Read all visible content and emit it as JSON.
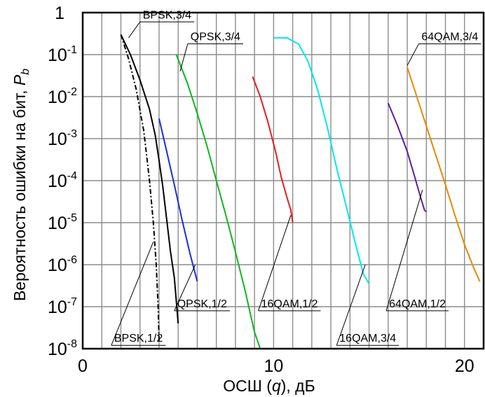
{
  "chart_data": {
    "type": "line",
    "title": "",
    "xlabel": {
      "prefix": "ОСШ (",
      "var": "q",
      "suffix": "), дБ"
    },
    "ylabel": {
      "text": "Вероятность ошибки на бит, ",
      "var": "P",
      "sub": "b"
    },
    "xlim": [
      0,
      21
    ],
    "ylim": [
      1e-08,
      1
    ],
    "yscale": "log",
    "grid": true,
    "x_ticks": [
      {
        "value": 0,
        "label": "0"
      },
      {
        "value": 10,
        "label": "10"
      },
      {
        "value": 20,
        "label": "20"
      }
    ],
    "y_ticks": [
      {
        "exp": 0,
        "label": "1"
      },
      {
        "exp": -1,
        "label": "10",
        "sup": "-1"
      },
      {
        "exp": -2,
        "label": "10",
        "sup": "-2"
      },
      {
        "exp": -3,
        "label": "10",
        "sup": "-3"
      },
      {
        "exp": -4,
        "label": "10",
        "sup": "-4"
      },
      {
        "exp": -5,
        "label": "10",
        "sup": "-5"
      },
      {
        "exp": -6,
        "label": "10",
        "sup": "-6"
      },
      {
        "exp": -7,
        "label": "10",
        "sup": "-7"
      },
      {
        "exp": -8,
        "label": "10",
        "sup": "-8"
      }
    ],
    "series": [
      {
        "name": "BPSK,1/2",
        "color": "#000000",
        "dash": "dashdot",
        "x": [
          2.0,
          2.4,
          2.8,
          3.2,
          3.5,
          3.7,
          3.85,
          3.95,
          4.0
        ],
        "y": [
          0.3,
          0.08,
          0.015,
          0.0015,
          0.0001,
          1e-05,
          1e-06,
          1e-07,
          1.5e-08
        ],
        "label_at": [
          3.6,
          1e-05
        ]
      },
      {
        "name": "BPSK,3/4",
        "color": "#000000",
        "dash": "solid",
        "x": [
          2.0,
          2.5,
          3.0,
          3.5,
          3.8,
          4.0,
          4.2,
          4.4,
          4.6,
          4.8,
          5.0
        ],
        "y": [
          0.3,
          0.1,
          0.025,
          0.005,
          0.0012,
          0.0003,
          7e-05,
          1.2e-05,
          2e-06,
          5e-07,
          4e-08
        ],
        "label_at": [
          2.6,
          0.2
        ]
      },
      {
        "name": "QPSK,1/2",
        "color": "#1a2ed6",
        "dash": "solid",
        "x": [
          4.0,
          4.4,
          4.8,
          5.2,
          5.6,
          6.0
        ],
        "y": [
          0.003,
          0.0005,
          8e-05,
          1.2e-05,
          2e-06,
          4e-07
        ],
        "label_at": [
          5.5,
          3e-06
        ]
      },
      {
        "name": "QPSK,3/4",
        "color": "#0cb81e",
        "dash": "solid",
        "x": [
          4.9,
          5.5,
          6.0,
          6.5,
          7.0,
          7.5,
          8.0,
          8.5,
          9.0,
          9.3
        ],
        "y": [
          0.1,
          0.02,
          0.004,
          0.0007,
          0.0001,
          1.5e-05,
          2e-06,
          2.5e-07,
          2.5e-08,
          1e-08
        ],
        "label_at": [
          5.2,
          0.01
        ]
      },
      {
        "name": "16QAM,1/2",
        "color": "#e61e1e",
        "dash": "solid",
        "x": [
          8.9,
          9.3,
          9.7,
          10.1,
          10.4,
          10.7,
          10.9,
          11.0
        ],
        "y": [
          0.03,
          0.01,
          0.0025,
          0.0005,
          0.00012,
          4e-05,
          2e-05,
          1e-05
        ],
        "label_at": [
          10.9,
          2e-05
        ]
      },
      {
        "name": "16QAM,3/4",
        "color": "#00e6f0",
        "dash": "solid",
        "x": [
          10.0,
          10.7,
          11.3,
          11.8,
          12.3,
          12.8,
          13.3,
          13.8,
          14.3,
          14.7,
          15.0
        ],
        "y": [
          0.25,
          0.25,
          0.18,
          0.07,
          0.015,
          0.002,
          0.0002,
          2.5e-05,
          3e-06,
          6e-07,
          3.5e-07
        ],
        "label_at": [
          14.8,
          1e-06
        ]
      },
      {
        "name": "64QAM,1/2",
        "color": "#5a1ea0",
        "dash": "solid",
        "x": [
          16.0,
          16.5,
          17.0,
          17.4,
          17.7,
          17.9,
          18.0
        ],
        "y": [
          0.007,
          0.002,
          0.0005,
          0.00012,
          4e-05,
          2e-05,
          1.8e-05
        ],
        "label_at": [
          17.8,
          6e-05
        ]
      },
      {
        "name": "64QAM,3/4",
        "color": "#e68a00",
        "dash": "solid",
        "x": [
          17.0,
          17.5,
          18.0,
          18.5,
          19.0,
          19.5,
          20.0,
          20.5,
          20.8
        ],
        "y": [
          0.05,
          0.01,
          0.002,
          0.0004,
          8e-05,
          1.5e-05,
          3e-06,
          8e-07,
          4e-07
        ],
        "label_at": [
          17.0,
          0.05
        ]
      }
    ],
    "annotations": [
      {
        "series": "BPSK,3/4",
        "text": "BPSK,3/4",
        "place": "above",
        "line_to": [
          2.4,
          0.25
        ],
        "text_at": [
          3.0,
          0.6
        ]
      },
      {
        "series": "QPSK,3/4",
        "text": "QPSK,3/4",
        "place": "above",
        "line_to": [
          5.1,
          0.04
        ],
        "text_at": [
          5.5,
          0.18
        ]
      },
      {
        "series": "64QAM,3/4",
        "text": "64QAM,3/4",
        "place": "above",
        "line_to": [
          17.0,
          0.055
        ],
        "text_at": [
          17.6,
          0.18
        ]
      },
      {
        "series": "BPSK,1/2",
        "text": "BPSK,1/2",
        "place": "above",
        "line_to": [
          3.7,
          3.5e-06
        ],
        "text_at": [
          1.5,
          1.2e-08
        ]
      },
      {
        "series": "QPSK,1/2",
        "text": "QPSK,1/2",
        "place": "above",
        "line_to": [
          5.9,
          1e-06
        ],
        "text_at": [
          4.8,
          8e-08
        ]
      },
      {
        "series": "16QAM,1/2",
        "text": "16QAM,1/2",
        "place": "above",
        "line_to": [
          10.9,
          1.5e-05
        ],
        "text_at": [
          9.2,
          8e-08
        ]
      },
      {
        "series": "16QAM,3/4",
        "text": "16QAM,3/4",
        "place": "above",
        "line_to": [
          14.8,
          1e-06
        ],
        "text_at": [
          13.3,
          1.2e-08
        ]
      },
      {
        "series": "64QAM,1/2",
        "text": "64QAM,1/2",
        "place": "above",
        "line_to": [
          17.8,
          6e-05
        ],
        "text_at": [
          15.9,
          8e-08
        ]
      }
    ]
  }
}
